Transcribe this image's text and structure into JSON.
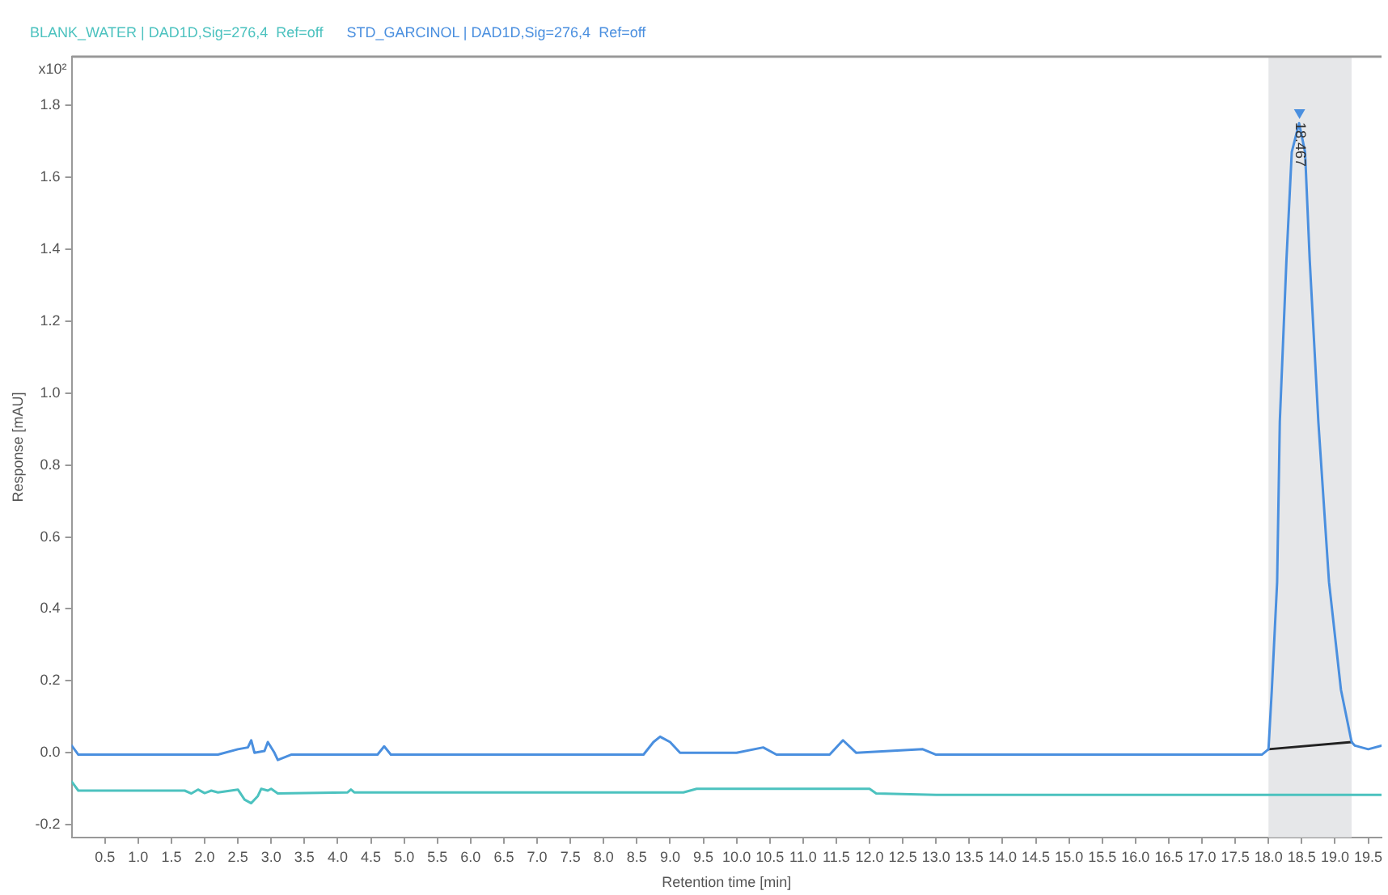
{
  "chart_data": {
    "type": "line",
    "xlabel": "Retention time [min]",
    "ylabel": "Response [mAU]",
    "xlim": [
      0,
      19.7
    ],
    "ylim": [
      -0.235,
      1.935
    ],
    "xticks": [
      0.5,
      {
        "value": 1,
        "label": "1.0"
      },
      1.5,
      {
        "value": 2,
        "label": "2.0"
      },
      2.5,
      {
        "value": 3,
        "label": "3.0"
      },
      3.5,
      {
        "value": 4,
        "label": "4.0"
      },
      4.5,
      {
        "value": 5,
        "label": "5.0"
      },
      5.5,
      {
        "value": 6,
        "label": "6.0"
      },
      6.5,
      {
        "value": 7,
        "label": "7.0"
      },
      7.5,
      {
        "value": 8,
        "label": "8.0"
      },
      8.5,
      {
        "value": 9,
        "label": "9.0"
      },
      9.5,
      {
        "value": 10,
        "label": "10.0"
      },
      10.5,
      {
        "value": 11,
        "label": "11.0"
      },
      11.5,
      {
        "value": 12,
        "label": "12.0"
      },
      12.5,
      {
        "value": 13,
        "label": "13.0"
      },
      13.5,
      {
        "value": 14,
        "label": "14.0"
      },
      14.5,
      {
        "value": 15,
        "label": "15.0"
      },
      15.5,
      {
        "value": 16,
        "label": "16.0"
      },
      16.5,
      {
        "value": 17,
        "label": "17.0"
      },
      17.5,
      {
        "value": 18,
        "label": "18.0"
      },
      18.5,
      {
        "value": 19,
        "label": "19.0"
      },
      19.5
    ],
    "yticks": [
      -0.2,
      {
        "value": 0,
        "label": "0.0"
      },
      0.2,
      0.4,
      0.6,
      0.8,
      {
        "value": 1,
        "label": "1.0"
      },
      1.2,
      1.4,
      1.6,
      1.8
    ],
    "grid": false,
    "legend": "top left",
    "marker": "none",
    "line_style": "solid",
    "series": [
      {
        "name": "BLANK_WATER | DAD1D,Sig=276,4  Ref=off",
        "color": "#4cc2bf",
        "x": [
          0,
          0.1,
          1.7,
          1.8,
          1.9,
          2.0,
          2.1,
          2.2,
          2.5,
          2.6,
          2.7,
          2.8,
          2.85,
          2.95,
          3.0,
          3.1,
          4.15,
          4.2,
          4.25,
          9.2,
          9.4,
          11.0,
          12.0,
          12.1,
          13.0,
          19.7
        ],
        "values": [
          -0.08,
          -0.105,
          -0.105,
          -0.113,
          -0.102,
          -0.112,
          -0.105,
          -0.11,
          -0.102,
          -0.13,
          -0.14,
          -0.12,
          -0.1,
          -0.105,
          -0.1,
          -0.113,
          -0.11,
          -0.102,
          -0.11,
          -0.11,
          -0.1,
          -0.1,
          -0.1,
          -0.113,
          -0.117,
          -0.117
        ]
      },
      {
        "name": "STD_GARCINOL | DAD1D,Sig=276,4  Ref=off",
        "color": "#4a8fdf",
        "x": [
          0,
          0.1,
          2.2,
          2.5,
          2.65,
          2.7,
          2.75,
          2.9,
          2.95,
          3.05,
          3.1,
          3.3,
          4.6,
          4.7,
          4.8,
          8.6,
          8.75,
          8.85,
          9.0,
          9.15,
          10.0,
          10.4,
          10.6,
          11.4,
          11.6,
          11.8,
          12.8,
          13.0,
          17.9,
          18.0,
          18.05,
          18.13,
          18.17,
          18.27,
          18.35,
          18.46,
          18.55,
          18.62,
          18.75,
          18.91,
          19.09,
          19.25,
          19.3,
          19.5,
          19.7
        ],
        "values": [
          0.02,
          -0.005,
          -0.005,
          0.01,
          0.015,
          0.035,
          0.0,
          0.005,
          0.03,
          0.0,
          -0.02,
          -0.005,
          -0.005,
          0.018,
          -0.005,
          -0.005,
          0.03,
          0.045,
          0.03,
          0.0,
          0.0,
          0.015,
          -0.005,
          -0.005,
          0.035,
          0.0,
          0.01,
          -0.005,
          -0.005,
          0.01,
          0.175,
          0.475,
          0.92,
          1.37,
          1.67,
          1.75,
          1.67,
          1.37,
          0.92,
          0.475,
          0.175,
          0.03,
          0.02,
          0.01,
          0.02
        ]
      },
      {
        "color": "#222222",
        "x": [
          18.0,
          19.25
        ],
        "values": [
          0.01,
          0.03
        ]
      },
      {
        "type": "scatter",
        "color": "#4a8fdf",
        "marker": "triangle",
        "x": [
          18.467
        ],
        "values": [
          1.78
        ]
      }
    ],
    "bands": [
      {
        "axis": "x",
        "from": 18.0,
        "to": 19.25,
        "color": "#e6e7e9"
      }
    ],
    "annotations": [
      "x10²",
      {
        "text": "18.467",
        "x": 18.467,
        "y": 1.78
      }
    ]
  }
}
